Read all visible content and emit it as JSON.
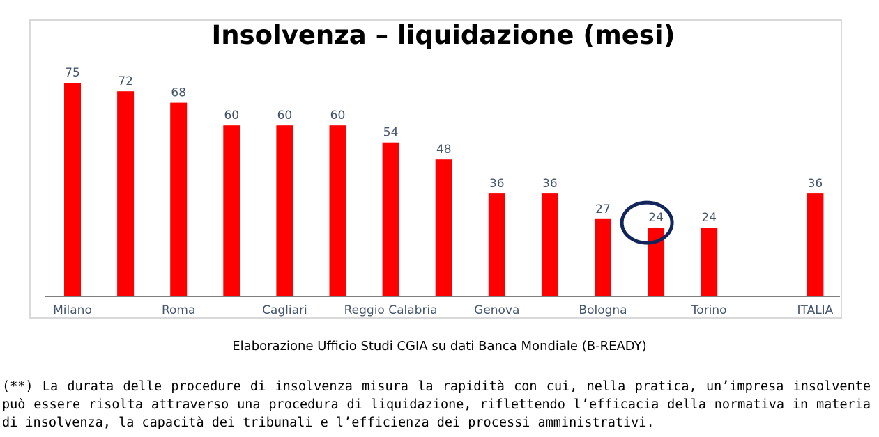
{
  "chart_data": {
    "type": "bar",
    "title": "Insolvenza – liquidazione (mesi)",
    "categories": [
      "Milano",
      "",
      "Roma",
      "",
      "Cagliari",
      "",
      "Reggio Calabria",
      "",
      "Genova",
      "",
      "Bologna",
      "",
      "Torino",
      "",
      "ITALIA"
    ],
    "values": [
      75,
      72,
      68,
      60,
      60,
      60,
      54,
      48,
      36,
      36,
      27,
      24,
      24,
      null,
      36
    ],
    "data_labels": [
      "75",
      "72",
      "68",
      "60",
      "60",
      "60",
      "54",
      "48",
      "36",
      "36",
      "27",
      "24",
      "24",
      "",
      "36"
    ],
    "xlabel": "",
    "ylabel": "",
    "ylim": [
      0,
      80
    ],
    "grid": false,
    "legend": "none",
    "highlighted_value_index": 11,
    "colors": {
      "bar": "#ff0000",
      "highlight_circle": "#13265c",
      "data_label": "#44546a",
      "axis": "#7f7f7f"
    }
  },
  "source_note": "Elaborazione Ufficio Studi CGIA su dati Banca Mondiale (B-READY)",
  "footnote": "(**) La durata delle procedure di insolvenza misura la rapidità con cui, nella pratica, un’impresa insolvente può essere risolta attraverso una procedura di liquidazione, riflettendo l’efficacia della normativa in materia di insolvenza, la capacità dei tribunali e l’efficienza dei processi amministrativi."
}
